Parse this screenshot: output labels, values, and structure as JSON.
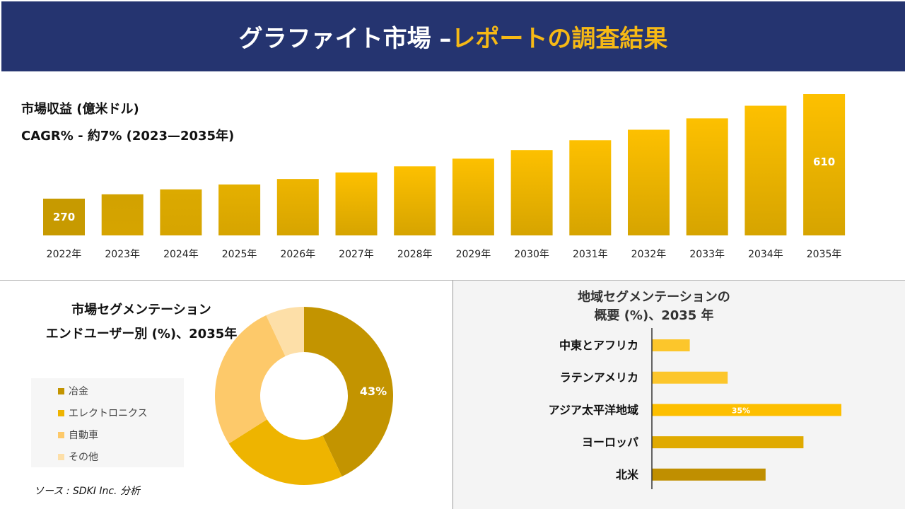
{
  "header": {
    "title_main": "グラファイト市場 –",
    "title_highlight": "レポートの調査結果"
  },
  "colors": {
    "header_bg": "#253470",
    "accent": "#f6b915"
  },
  "chart_data": [
    {
      "type": "bar",
      "title": "市場収益 (億米ドル)",
      "subtitle": "CAGR% - 約7% (2023—2035年)",
      "categories": [
        "2022年",
        "2023年",
        "2024年",
        "2025年",
        "2026年",
        "2027年",
        "2028年",
        "2029年",
        "2030年",
        "2031年",
        "2032年",
        "2033年",
        "2034年",
        "2035年"
      ],
      "values": [
        270,
        284,
        300,
        316,
        334,
        355,
        375,
        400,
        428,
        460,
        494,
        531,
        572,
        610
      ],
      "data_labels": {
        "0": "270",
        "13": "610"
      }
    },
    {
      "type": "pie",
      "title_line1": "市場セグメンテーション",
      "title_line2": "エンドユーザー別 (%)、2035年",
      "labels": [
        "冶金",
        "エレクトロニクス",
        "自動車",
        "その他"
      ],
      "values": [
        43,
        23,
        27,
        7
      ],
      "colors": [
        "#c39400",
        "#eeb400",
        "#fdc96a",
        "#fddfa8"
      ],
      "data_label": "43%"
    },
    {
      "type": "bar",
      "orientation": "horizontal",
      "title_line1": "地域セグメンテーションの",
      "title_line2": "概要 (%)、2035 年",
      "categories": [
        "中東とアフリカ",
        "ラテンアメリカ",
        "アジア太平洋地域",
        "ヨーロッパ",
        "北米"
      ],
      "values": [
        7,
        14,
        35,
        28,
        21
      ],
      "colors": [
        "#fcc62b",
        "#fcc62b",
        "#fdbf00",
        "#e0aa00",
        "#c08f00"
      ],
      "data_label": "35%"
    }
  ],
  "source": "ソース : SDKI Inc. 分析"
}
